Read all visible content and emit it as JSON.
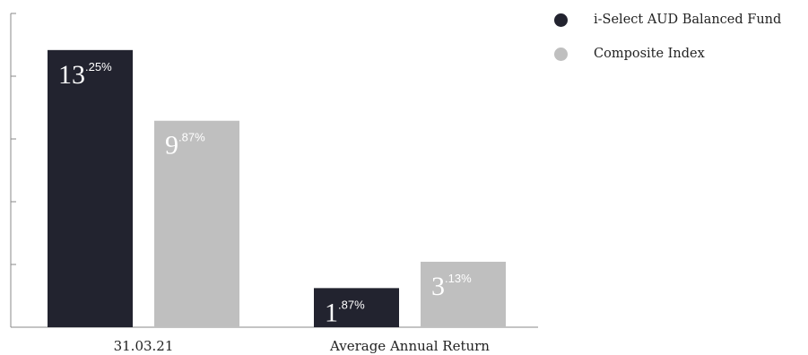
{
  "chart_data": {
    "type": "bar",
    "categories": [
      "31.03.21",
      "Average Annual Return"
    ],
    "series": [
      {
        "name": "i-Select AUD Balanced Fund",
        "values": [
          13.25,
          1.87
        ],
        "color": "#22232f"
      },
      {
        "name": "Composite Index",
        "values": [
          9.87,
          3.13
        ],
        "color": "#bfbfbf"
      }
    ],
    "data_labels": [
      [
        {
          "int": "13",
          "dec": ".25%"
        },
        {
          "int": "1",
          "dec": ".87%"
        }
      ],
      [
        {
          "int": "9",
          "dec": ".87%"
        },
        {
          "int": "3",
          "dec": ".13%"
        }
      ]
    ],
    "title": "",
    "xlabel": "",
    "ylabel": "",
    "ylim": [
      0,
      15
    ],
    "grid": false,
    "legend_position": "top-right"
  }
}
